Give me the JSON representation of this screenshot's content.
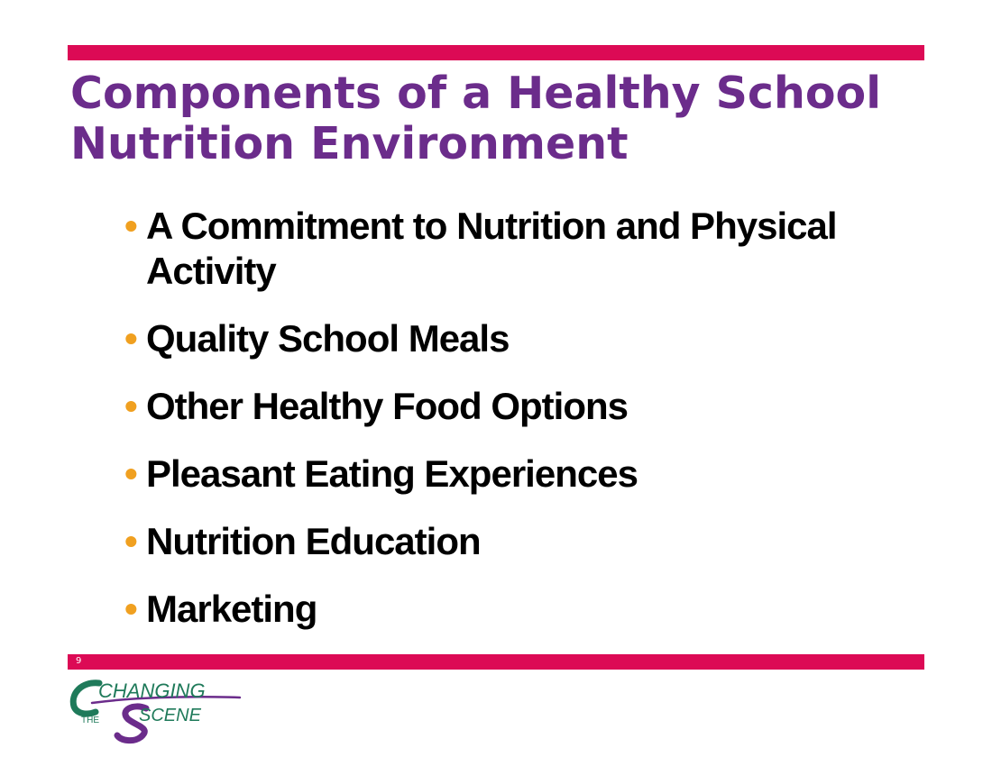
{
  "slide": {
    "title": "Components of a Healthy School Nutrition Environment",
    "bullets": [
      {
        "text": "A Commitment to Nutrition and Physical Activity"
      },
      {
        "text": "Quality School Meals"
      },
      {
        "text": "Other Healthy Food Options"
      },
      {
        "text": "Pleasant Eating Experiences"
      },
      {
        "text": "Nutrition Education"
      },
      {
        "text": "Marketing"
      }
    ],
    "bullet_symbol": "•",
    "page_number": "9"
  },
  "logo": {
    "text_the": "THE",
    "text_changing": "CHANGING",
    "text_scene": "SCENE"
  },
  "colors": {
    "accent_bar": "#dc0a55",
    "title": "#6b2c8b",
    "bullet": "#f0a020",
    "body_text": "#000000",
    "logo_green": "#1f7a5a",
    "logo_purple": "#6b2c8b"
  }
}
